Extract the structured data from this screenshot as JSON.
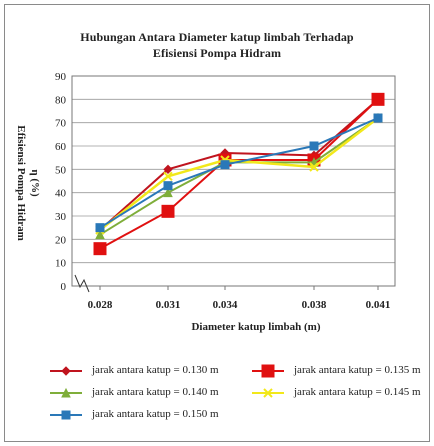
{
  "chart_data": {
    "type": "line",
    "title": "Hubungan Antara Diameter katup limbah Terhadap",
    "subtitle": "Efisiensi Pompa Hidram",
    "xlabel": "Diameter katup limbah (m)",
    "ylabel_line1": "Efisiensi Pompa Hidram",
    "ylabel_line2": "η (%)",
    "categories": [
      "0.028",
      "0.031",
      "0.034",
      "0.038",
      "0.041"
    ],
    "ylim": [
      0,
      90
    ],
    "yticks": [
      "0",
      "10",
      "20",
      "30",
      "40",
      "50",
      "60",
      "70",
      "80",
      "90"
    ],
    "grid": true,
    "legend_position": "bottom",
    "series": [
      {
        "name": "jarak antara katup = 0.130 m",
        "color": "#c0141e",
        "marker": "diamond",
        "values": [
          24,
          50,
          57,
          56,
          80
        ]
      },
      {
        "name": "jarak antara katup = 0.135 m",
        "color": "#e01010",
        "marker": "square",
        "values": [
          16,
          32,
          54,
          54,
          80
        ]
      },
      {
        "name": "jarak antara katup = 0.140 m",
        "color": "#7fae3a",
        "marker": "triangle",
        "values": [
          22,
          40,
          53,
          53,
          72
        ]
      },
      {
        "name": "jarak antara katup = 0.145 m",
        "color": "#f2e81a",
        "marker": "x",
        "values": [
          24,
          47,
          54,
          51,
          72
        ]
      },
      {
        "name": "jarak antara katup = 0.150 m",
        "color": "#2a78b8",
        "marker": "square",
        "values": [
          25,
          43,
          52,
          60,
          72
        ]
      }
    ]
  }
}
